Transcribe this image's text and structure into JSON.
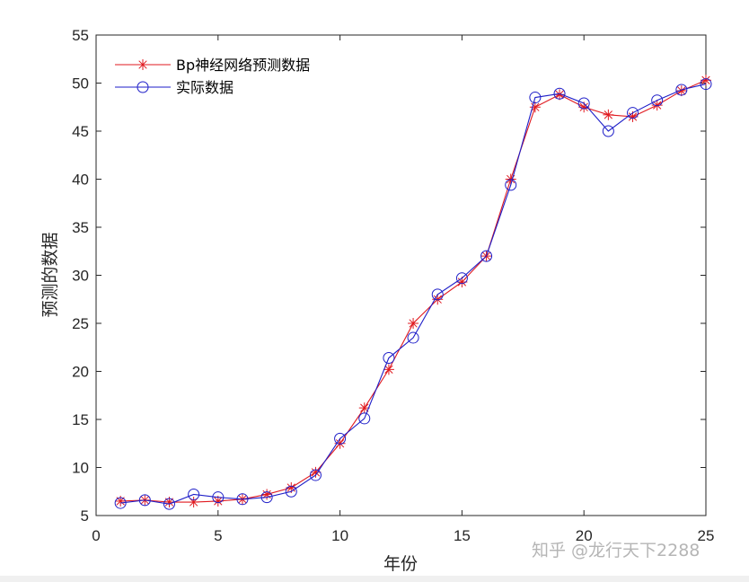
{
  "chart_data": {
    "type": "line",
    "xlabel": "年份",
    "ylabel": "预测的数据",
    "xlim": [
      0,
      25
    ],
    "ylim": [
      5,
      55
    ],
    "xticks": [
      0,
      5,
      10,
      15,
      20,
      25
    ],
    "yticks": [
      5,
      10,
      15,
      20,
      25,
      30,
      35,
      40,
      45,
      50,
      55
    ],
    "legend_position": "top-left",
    "x": [
      1,
      2,
      3,
      4,
      5,
      6,
      7,
      8,
      9,
      10,
      11,
      12,
      13,
      14,
      15,
      16,
      17,
      18,
      19,
      20,
      21,
      22,
      23,
      24,
      25
    ],
    "series": [
      {
        "name": "Bp神经网络预测数据",
        "color": "#e0191f",
        "marker": "asterisk",
        "values": [
          6.5,
          6.6,
          6.4,
          6.4,
          6.5,
          6.7,
          7.2,
          7.9,
          9.5,
          12.5,
          16.2,
          20.2,
          25.0,
          27.5,
          29.3,
          32.0,
          40.0,
          47.5,
          48.8,
          47.5,
          46.7,
          46.5,
          47.7,
          49.2,
          50.3
        ]
      },
      {
        "name": "实际数据",
        "color": "#1e1ec8",
        "marker": "circle",
        "values": [
          6.3,
          6.6,
          6.2,
          7.2,
          6.9,
          6.7,
          6.9,
          7.5,
          9.2,
          13.0,
          15.1,
          21.4,
          23.5,
          28.0,
          29.7,
          32.0,
          39.4,
          48.5,
          48.9,
          47.9,
          45.0,
          46.9,
          48.2,
          49.3,
          49.9
        ]
      }
    ]
  },
  "watermark": "知乎 @龙行天下2288"
}
